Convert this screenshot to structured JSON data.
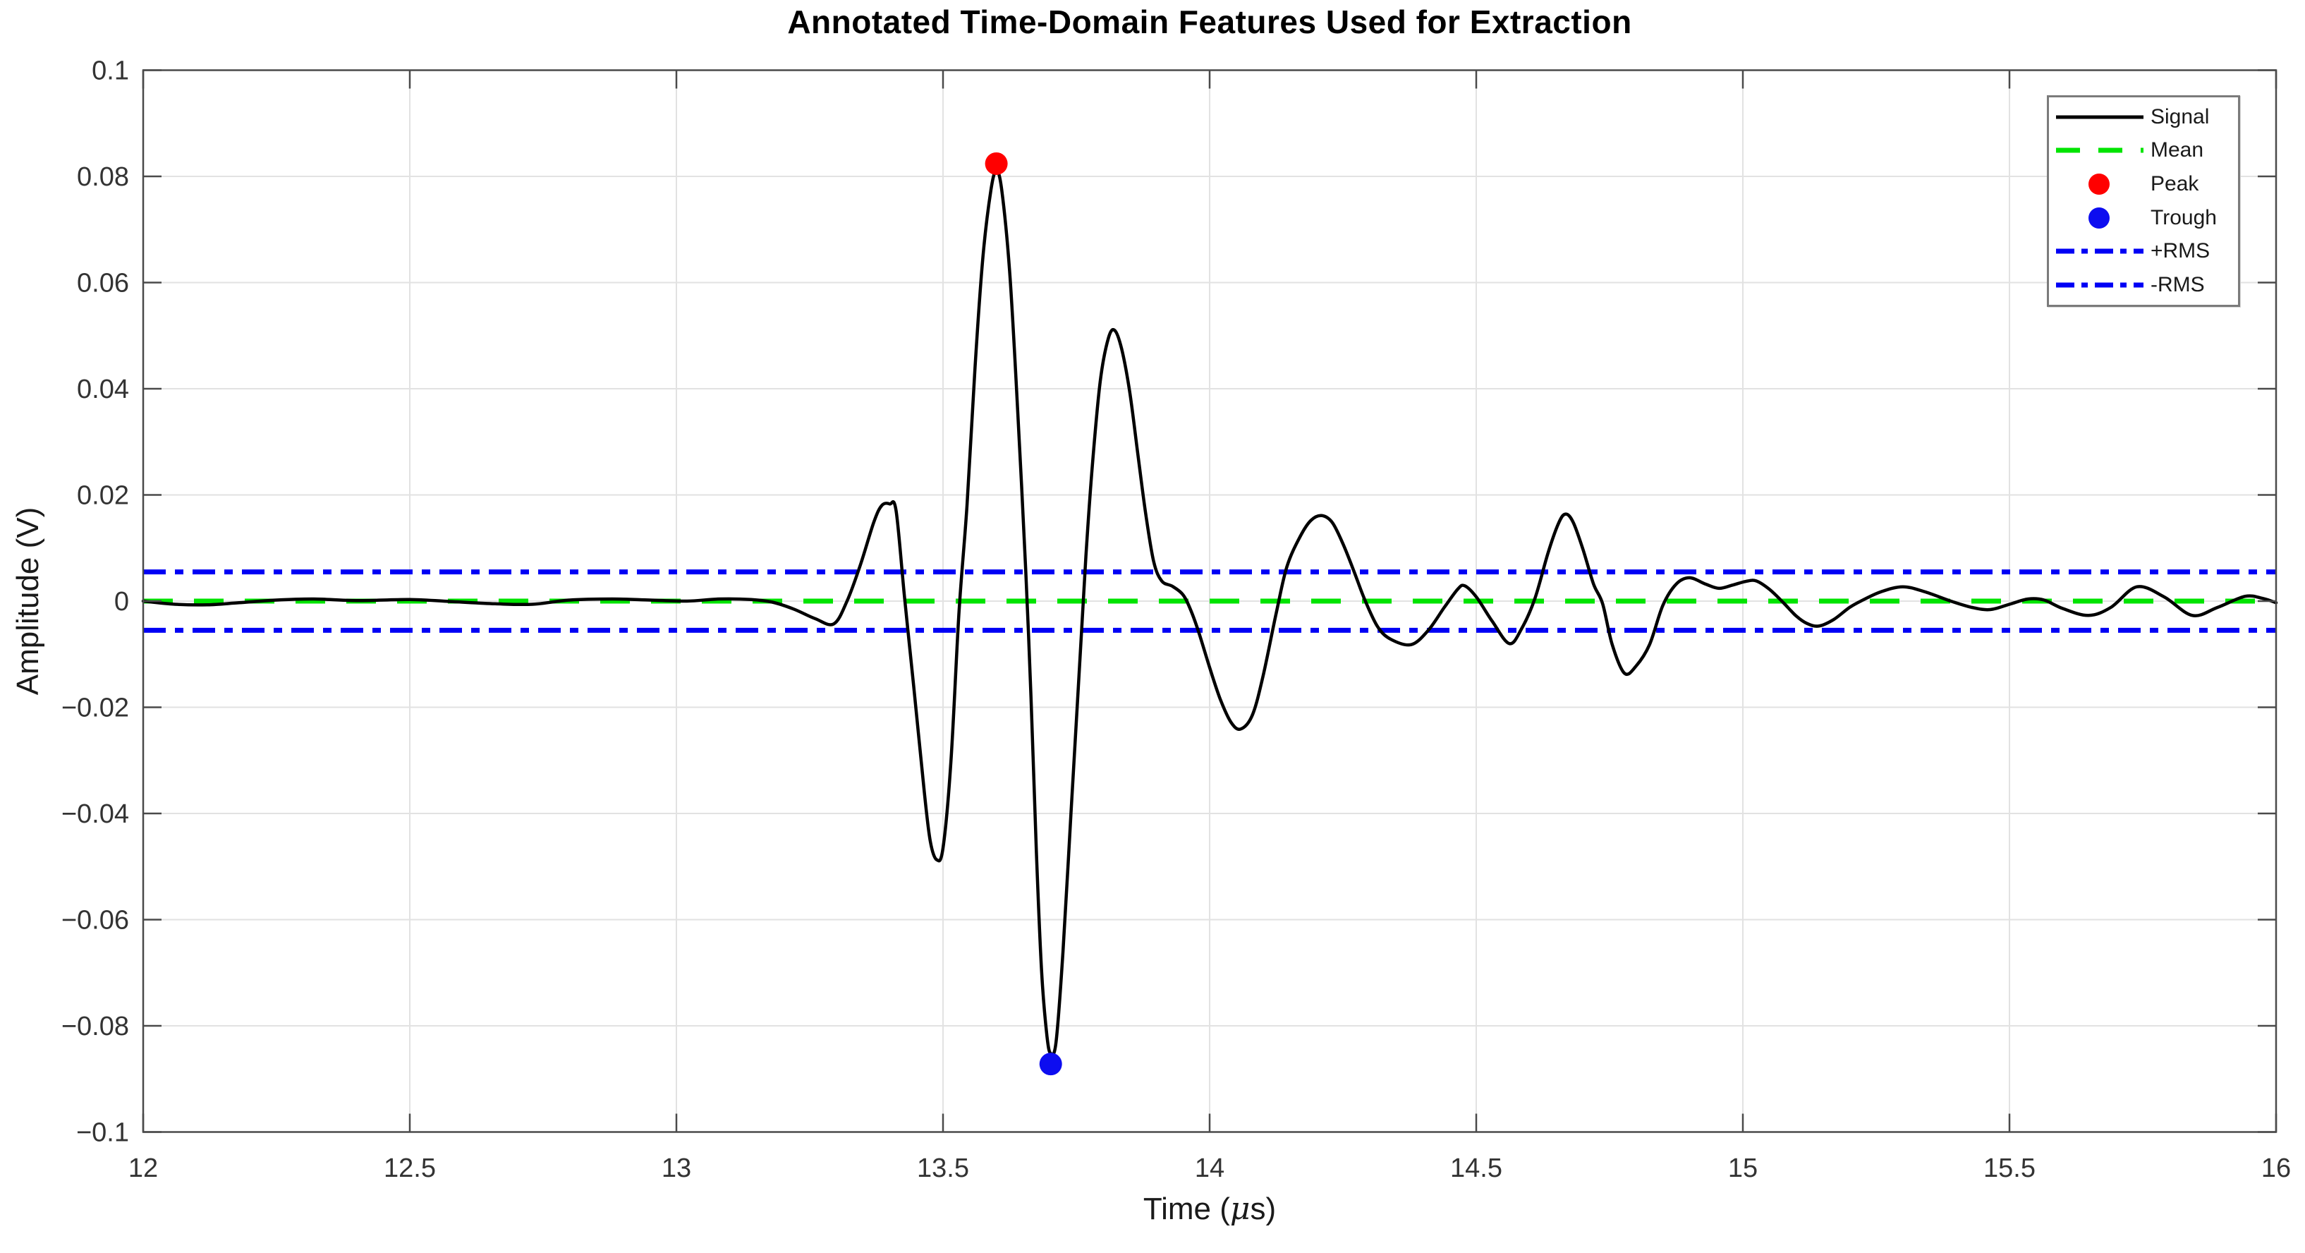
{
  "title": "Annotated Time-Domain Features Used for Extraction",
  "axes": {
    "xlabel_prefix": "Time (",
    "xlabel_mu": "μ",
    "xlabel_suffix": "s)",
    "xlabel_full": "Time (μs)",
    "ylabel": "Amplitude (V)",
    "xlim": [
      12,
      16
    ],
    "ylim": [
      -0.1,
      0.1
    ],
    "xticks": [
      {
        "v": 12,
        "label": "12"
      },
      {
        "v": 12.5,
        "label": "12.5"
      },
      {
        "v": 13,
        "label": "13"
      },
      {
        "v": 13.5,
        "label": "13.5"
      },
      {
        "v": 14,
        "label": "14"
      },
      {
        "v": 14.5,
        "label": "14.5"
      },
      {
        "v": 15,
        "label": "15"
      },
      {
        "v": 15.5,
        "label": "15.5"
      },
      {
        "v": 16,
        "label": "16"
      }
    ],
    "yticks": [
      {
        "v": -0.1,
        "label": "−0.1"
      },
      {
        "v": -0.08,
        "label": "−0.08"
      },
      {
        "v": -0.06,
        "label": "−0.06"
      },
      {
        "v": -0.04,
        "label": "−0.04"
      },
      {
        "v": -0.02,
        "label": "−0.02"
      },
      {
        "v": 0,
        "label": "0"
      },
      {
        "v": 0.02,
        "label": "0.02"
      },
      {
        "v": 0.04,
        "label": "0.04"
      },
      {
        "v": 0.06,
        "label": "0.06"
      },
      {
        "v": 0.08,
        "label": "0.08"
      },
      {
        "v": 0.1,
        "label": "0.1"
      }
    ],
    "grid": true
  },
  "legend": {
    "position": "top-right",
    "items": [
      {
        "key": "signal",
        "label": "Signal",
        "swatch": "solid-line",
        "color": "#000000"
      },
      {
        "key": "mean",
        "label": "Mean",
        "swatch": "dashed-line",
        "color": "#00e400"
      },
      {
        "key": "peak",
        "label": "Peak",
        "swatch": "dot",
        "color": "#ff0000"
      },
      {
        "key": "trough",
        "label": "Trough",
        "swatch": "dot",
        "color": "#0d0df0"
      },
      {
        "key": "plus-rms",
        "label": "+RMS",
        "swatch": "dashdot-line",
        "color": "#0000f5"
      },
      {
        "key": "minus-rms",
        "label": "-RMS",
        "swatch": "dashdot-line",
        "color": "#0000f5"
      }
    ]
  },
  "colors": {
    "signal": "#000000",
    "mean": "#00e400",
    "rms": "#0000f5",
    "peak_marker": "#ff0000",
    "trough_marker": "#0d0df0",
    "grid": "#e2e2e2",
    "axis": "#4a4a4a",
    "tick_text": "#333333"
  },
  "chart_data": {
    "type": "line",
    "title": "Annotated Time-Domain Features Used for Extraction",
    "xlabel": "Time (μs)",
    "ylabel": "Amplitude (V)",
    "xlim": [
      12,
      16
    ],
    "ylim": [
      -0.1,
      0.1
    ],
    "mean_value": 0.0,
    "rms_value": 0.0055,
    "peak_point": {
      "t": 13.6,
      "v": 0.0824
    },
    "trough_point": {
      "t": 13.702,
      "v": -0.0872
    },
    "series": [
      {
        "name": "Signal",
        "points": [
          [
            12.0,
            0.0
          ],
          [
            12.06,
            -0.0006
          ],
          [
            12.12,
            -0.0007
          ],
          [
            12.18,
            -0.0003
          ],
          [
            12.25,
            0.0002
          ],
          [
            12.32,
            0.0004
          ],
          [
            12.4,
            0.0001
          ],
          [
            12.5,
            0.0003
          ],
          [
            12.58,
            -0.0001
          ],
          [
            12.66,
            -0.0005
          ],
          [
            12.73,
            -0.0006
          ],
          [
            12.8,
            0.0002
          ],
          [
            12.88,
            0.0004
          ],
          [
            12.95,
            0.0002
          ],
          [
            13.02,
            0.0
          ],
          [
            13.08,
            0.0004
          ],
          [
            13.14,
            0.0003
          ],
          [
            13.18,
            -0.0002
          ],
          [
            13.22,
            -0.0015
          ],
          [
            13.26,
            -0.0033
          ],
          [
            13.295,
            -0.0043
          ],
          [
            13.32,
            0.0
          ],
          [
            13.345,
            0.0068
          ],
          [
            13.37,
            0.0148
          ],
          [
            13.385,
            0.018
          ],
          [
            13.4,
            0.0183
          ],
          [
            13.412,
            0.017
          ],
          [
            13.428,
            0.0005
          ],
          [
            13.445,
            -0.016
          ],
          [
            13.465,
            -0.036
          ],
          [
            13.476,
            -0.0452
          ],
          [
            13.488,
            -0.0487
          ],
          [
            13.5,
            -0.0465
          ],
          [
            13.515,
            -0.03
          ],
          [
            13.53,
            -0.002
          ],
          [
            13.545,
            0.018
          ],
          [
            13.56,
            0.044
          ],
          [
            13.575,
            0.065
          ],
          [
            13.59,
            0.0775
          ],
          [
            13.6,
            0.081
          ],
          [
            13.61,
            0.0775
          ],
          [
            13.625,
            0.062
          ],
          [
            13.64,
            0.036
          ],
          [
            13.655,
            0.006
          ],
          [
            13.665,
            -0.018
          ],
          [
            13.675,
            -0.047
          ],
          [
            13.685,
            -0.07
          ],
          [
            13.695,
            -0.082
          ],
          [
            13.702,
            -0.0852
          ],
          [
            13.712,
            -0.083
          ],
          [
            13.725,
            -0.066
          ],
          [
            13.74,
            -0.04
          ],
          [
            13.755,
            -0.014
          ],
          [
            13.768,
            0.0085
          ],
          [
            13.78,
            0.0255
          ],
          [
            13.795,
            0.0415
          ],
          [
            13.81,
            0.0495
          ],
          [
            13.822,
            0.051
          ],
          [
            13.835,
            0.0475
          ],
          [
            13.85,
            0.0395
          ],
          [
            13.865,
            0.028
          ],
          [
            13.88,
            0.0165
          ],
          [
            13.895,
            0.0075
          ],
          [
            13.91,
            0.0038
          ],
          [
            13.93,
            0.0028
          ],
          [
            13.95,
            0.0012
          ],
          [
            13.965,
            -0.0018
          ],
          [
            13.98,
            -0.006
          ],
          [
            14.0,
            -0.0125
          ],
          [
            14.02,
            -0.0185
          ],
          [
            14.04,
            -0.0228
          ],
          [
            14.058,
            -0.0241
          ],
          [
            14.08,
            -0.0215
          ],
          [
            14.1,
            -0.0142
          ],
          [
            14.125,
            -0.0022
          ],
          [
            14.145,
            0.0065
          ],
          [
            14.17,
            0.0122
          ],
          [
            14.19,
            0.0152
          ],
          [
            14.21,
            0.0161
          ],
          [
            14.23,
            0.0148
          ],
          [
            14.25,
            0.0108
          ],
          [
            14.27,
            0.0058
          ],
          [
            14.29,
            0.0005
          ],
          [
            14.315,
            -0.0048
          ],
          [
            14.34,
            -0.0072
          ],
          [
            14.378,
            -0.0082
          ],
          [
            14.41,
            -0.0055
          ],
          [
            14.44,
            -0.0012
          ],
          [
            14.465,
            0.0022
          ],
          [
            14.478,
            0.0029
          ],
          [
            14.5,
            0.0008
          ],
          [
            14.53,
            -0.0038
          ],
          [
            14.562,
            -0.008
          ],
          [
            14.585,
            -0.0052
          ],
          [
            14.61,
            0.0005
          ],
          [
            14.635,
            0.0092
          ],
          [
            14.655,
            0.0148
          ],
          [
            14.668,
            0.0164
          ],
          [
            14.682,
            0.0148
          ],
          [
            14.7,
            0.0098
          ],
          [
            14.72,
            0.0032
          ],
          [
            14.737,
            -0.0005
          ],
          [
            14.755,
            -0.0082
          ],
          [
            14.778,
            -0.0136
          ],
          [
            14.8,
            -0.0122
          ],
          [
            14.825,
            -0.0082
          ],
          [
            14.85,
            -0.0008
          ],
          [
            14.875,
            0.0032
          ],
          [
            14.9,
            0.0044
          ],
          [
            14.93,
            0.0032
          ],
          [
            14.955,
            0.0024
          ],
          [
            14.98,
            0.003
          ],
          [
            15.005,
            0.0037
          ],
          [
            15.025,
            0.0038
          ],
          [
            15.05,
            0.0022
          ],
          [
            15.075,
            -0.0002
          ],
          [
            15.1,
            -0.0028
          ],
          [
            15.12,
            -0.0042
          ],
          [
            15.142,
            -0.0047
          ],
          [
            15.17,
            -0.0035
          ],
          [
            15.2,
            -0.0012
          ],
          [
            15.225,
            0.0002
          ],
          [
            15.26,
            0.0018
          ],
          [
            15.3,
            0.0027
          ],
          [
            15.34,
            0.0018
          ],
          [
            15.39,
            0.0
          ],
          [
            15.43,
            -0.0012
          ],
          [
            15.464,
            -0.0016
          ],
          [
            15.5,
            -0.0006
          ],
          [
            15.535,
            0.0004
          ],
          [
            15.565,
            0.0002
          ],
          [
            15.6,
            -0.0014
          ],
          [
            15.648,
            -0.0027
          ],
          [
            15.69,
            -0.0012
          ],
          [
            15.739,
            0.0027
          ],
          [
            15.79,
            0.0008
          ],
          [
            15.843,
            -0.0027
          ],
          [
            15.89,
            -0.0012
          ],
          [
            15.942,
            0.0009
          ],
          [
            15.975,
            0.0005
          ],
          [
            16.0,
            -0.0003
          ]
        ]
      }
    ],
    "annotation_lines": [
      {
        "name": "Mean",
        "value": 0.0,
        "style": "dashed",
        "color": "#00e400"
      },
      {
        "name": "+RMS",
        "value": 0.0055,
        "style": "dashdot",
        "color": "#0000f5"
      },
      {
        "name": "-RMS",
        "value": -0.0055,
        "style": "dashdot",
        "color": "#0000f5"
      }
    ]
  }
}
